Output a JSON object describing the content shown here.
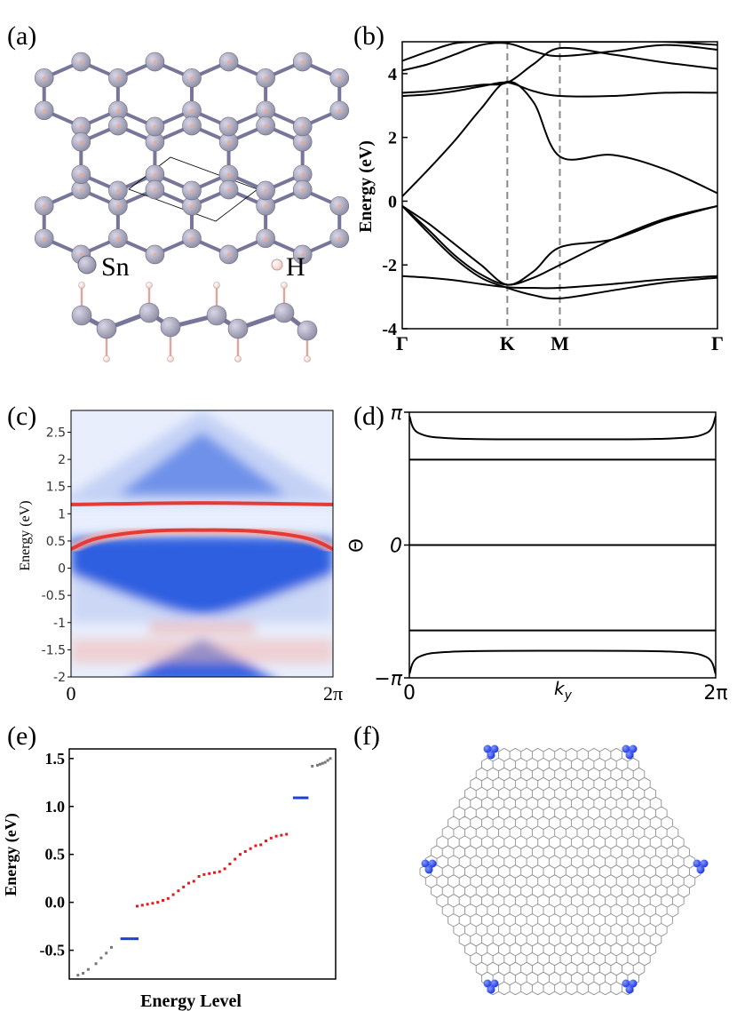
{
  "colors": {
    "atom_sn": "#8e8ca2",
    "atom_h": "#f0c8c0",
    "bond": "#77759a",
    "band_line": "#000000",
    "k_line": "#8a8a8a",
    "spectral_blue": "#2d5fe0",
    "spectral_red": "#e53a35",
    "level_blue": "#1b3fd6",
    "level_red": "#e41a1c",
    "level_gray": "#777777",
    "lattice": "#909090",
    "corner_state": "#1b2fe0"
  },
  "panels": {
    "a": {
      "label": "(a)",
      "legend": [
        {
          "symbol": "sn-atom",
          "text": "Sn"
        },
        {
          "symbol": "h-atom",
          "text": "H"
        }
      ]
    },
    "b": {
      "label": "(b)"
    },
    "c": {
      "label": "(c)"
    },
    "d": {
      "label": "(d)"
    },
    "e": {
      "label": "(e)"
    },
    "f": {
      "label": "(f)"
    }
  },
  "chart_data": [
    {
      "id": "b",
      "type": "line",
      "title": "",
      "ylabel": "Energy (eV)",
      "xlabel": "",
      "ylim": [
        -4,
        5
      ],
      "yticks": [
        -4,
        -2,
        0,
        2,
        4
      ],
      "kpoints": [
        "Γ",
        "K",
        "M",
        "Γ"
      ],
      "kpos": [
        0,
        1,
        1.5,
        3
      ],
      "bands": [
        {
          "x": [
            0,
            0.25,
            0.5,
            0.75,
            1,
            1.25,
            1.5,
            2,
            2.5,
            3
          ],
          "y": [
            -2.35,
            -2.4,
            -2.48,
            -2.6,
            -2.7,
            -2.72,
            -2.72,
            -2.6,
            -2.45,
            -2.35
          ]
        },
        {
          "x": [
            0,
            0.25,
            0.5,
            0.75,
            1,
            1.25,
            1.5,
            2,
            2.5,
            3
          ],
          "y": [
            -0.15,
            -0.9,
            -1.7,
            -2.3,
            -2.62,
            -2.4,
            -2.0,
            -1.2,
            -0.55,
            -0.15
          ]
        },
        {
          "x": [
            0,
            0.25,
            0.5,
            0.75,
            1,
            1.25,
            1.5,
            2,
            2.5,
            3
          ],
          "y": [
            -0.15,
            -1.0,
            -1.8,
            -2.4,
            -2.72,
            -2.95,
            -3.05,
            -2.8,
            -2.55,
            -2.4
          ]
        },
        {
          "x": [
            0,
            0.25,
            0.5,
            0.75,
            1,
            1.25,
            1.5,
            2,
            2.5,
            3
          ],
          "y": [
            -0.15,
            -0.7,
            -1.35,
            -2.0,
            -2.62,
            -2.2,
            -1.45,
            -1.2,
            -0.6,
            -0.15
          ]
        },
        {
          "x": [
            0,
            0.25,
            0.5,
            0.75,
            1,
            1.25,
            1.5,
            2,
            2.5,
            3
          ],
          "y": [
            0.15,
            1.0,
            1.9,
            2.9,
            3.75,
            3.1,
            1.4,
            1.45,
            1.0,
            0.25
          ]
        },
        {
          "x": [
            0,
            0.25,
            0.5,
            0.75,
            1,
            1.25,
            1.5,
            2,
            2.5,
            3
          ],
          "y": [
            3.3,
            3.35,
            3.45,
            3.6,
            3.72,
            3.45,
            3.3,
            3.3,
            3.4,
            3.4
          ]
        },
        {
          "x": [
            0,
            0.25,
            0.5,
            0.75,
            1,
            1.25,
            1.5,
            2,
            2.5,
            3
          ],
          "y": [
            3.4,
            3.45,
            3.55,
            3.65,
            3.72,
            4.3,
            4.8,
            4.6,
            4.35,
            4.15
          ]
        },
        {
          "x": [
            0,
            0.25,
            0.5,
            0.75,
            1,
            1.25,
            1.5,
            2,
            2.5,
            3
          ],
          "y": [
            4.1,
            4.3,
            4.6,
            4.9,
            4.95,
            4.7,
            4.55,
            4.7,
            4.9,
            4.75
          ]
        },
        {
          "x": [
            0,
            0.25,
            0.5,
            0.75,
            1,
            1.25,
            1.5,
            2,
            2.5,
            3
          ],
          "y": [
            4.4,
            4.7,
            4.95,
            5.0,
            5.0,
            5.0,
            5.0,
            5.0,
            5.0,
            4.9
          ]
        }
      ]
    },
    {
      "id": "c",
      "type": "heatmap",
      "title": "",
      "ylabel": "Energy (eV)",
      "xlabel": "",
      "ylim": [
        -2,
        2.9
      ],
      "yticks": [
        -2,
        -1.5,
        -1,
        -0.5,
        0,
        0.5,
        1,
        1.5,
        2,
        2.5
      ],
      "ytick_labels": [
        "-2",
        "-1.5",
        "-1",
        "-0.5",
        "0",
        "0.5",
        "1",
        "1.5",
        "2",
        "2.5"
      ],
      "xtick_labels": [
        "0",
        "2π"
      ],
      "edge_states": [
        {
          "name": "upper",
          "x": [
            0,
            0.5,
            1
          ],
          "y": [
            1.17,
            1.2,
            1.17
          ]
        },
        {
          "name": "lower",
          "x": [
            0,
            0.1,
            0.3,
            0.5,
            0.7,
            0.9,
            1
          ],
          "y": [
            0.35,
            0.55,
            0.68,
            0.7,
            0.68,
            0.55,
            0.35
          ]
        }
      ],
      "bulk_regions": [
        {
          "name": "conduction",
          "apex": 2.5,
          "base": 1.35
        },
        {
          "name": "valence",
          "top": 0.55,
          "bottom": -0.85
        },
        {
          "name": "lower",
          "top": -1.3,
          "bottom": -2
        }
      ]
    },
    {
      "id": "d",
      "type": "line",
      "title": "",
      "ylabel": "Θ",
      "xlabel": "k_y",
      "ylim": [
        -3.1416,
        3.1416
      ],
      "yticks": [
        -3.1416,
        0,
        3.1416
      ],
      "ytick_labels": [
        "−π",
        "0",
        "π"
      ],
      "xtick_labels": [
        "0",
        "2π"
      ],
      "series": [
        {
          "name": "theta-upper",
          "x": [
            0,
            0.03,
            0.15,
            0.5,
            0.85,
            0.97,
            1
          ],
          "y": [
            3.05,
            2.65,
            2.52,
            2.5,
            2.52,
            2.65,
            3.05
          ]
        },
        {
          "name": "theta-mid-upper",
          "x": [
            0,
            1
          ],
          "y": [
            2.02,
            2.02
          ]
        },
        {
          "name": "theta-zero",
          "x": [
            0,
            1
          ],
          "y": [
            0,
            0
          ]
        },
        {
          "name": "theta-mid-lower",
          "x": [
            0,
            1
          ],
          "y": [
            -2.02,
            -2.02
          ]
        },
        {
          "name": "theta-lower",
          "x": [
            0,
            0.03,
            0.15,
            0.5,
            0.85,
            0.97,
            1
          ],
          "y": [
            -3.05,
            -2.65,
            -2.52,
            -2.5,
            -2.52,
            -2.65,
            -3.05
          ]
        }
      ]
    },
    {
      "id": "e",
      "type": "scatter",
      "title": "",
      "ylabel": "Energy (eV)",
      "xlabel": "Energy Level",
      "ylim": [
        -0.8,
        1.6
      ],
      "yticks": [
        -0.5,
        0.0,
        0.5,
        1.0,
        1.5
      ],
      "ytick_labels": [
        "-0.5",
        "0.0",
        "0.5",
        "1.0",
        "1.5"
      ],
      "series": [
        {
          "name": "low-bulk",
          "color": "gray",
          "points": [
            [
              0.02,
              -0.76
            ],
            [
              0.04,
              -0.74
            ],
            [
              0.06,
              -0.7
            ],
            [
              0.09,
              -0.64
            ],
            [
              0.11,
              -0.58
            ],
            [
              0.13,
              -0.53
            ],
            [
              0.15,
              -0.47
            ]
          ]
        },
        {
          "name": "low-corner",
          "color": "blue",
          "points": [
            [
              0.19,
              -0.38
            ],
            [
              0.2,
              -0.38
            ],
            [
              0.21,
              -0.38
            ],
            [
              0.22,
              -0.38
            ],
            [
              0.23,
              -0.38
            ],
            [
              0.24,
              -0.38
            ],
            [
              0.25,
              -0.38
            ]
          ]
        },
        {
          "name": "edge",
          "color": "red",
          "points": [
            [
              0.25,
              -0.04
            ],
            [
              0.27,
              -0.03
            ],
            [
              0.29,
              -0.02
            ],
            [
              0.31,
              -0.01
            ],
            [
              0.33,
              0.0
            ],
            [
              0.35,
              0.02
            ],
            [
              0.37,
              0.04
            ],
            [
              0.39,
              0.08
            ],
            [
              0.41,
              0.12
            ],
            [
              0.43,
              0.16
            ],
            [
              0.45,
              0.2
            ],
            [
              0.47,
              0.22
            ],
            [
              0.49,
              0.27
            ],
            [
              0.51,
              0.29
            ],
            [
              0.53,
              0.3
            ],
            [
              0.55,
              0.31
            ],
            [
              0.57,
              0.32
            ],
            [
              0.59,
              0.35
            ],
            [
              0.61,
              0.4
            ],
            [
              0.63,
              0.45
            ],
            [
              0.65,
              0.5
            ],
            [
              0.67,
              0.53
            ],
            [
              0.69,
              0.56
            ],
            [
              0.71,
              0.59
            ],
            [
              0.73,
              0.6
            ],
            [
              0.75,
              0.64
            ],
            [
              0.77,
              0.67
            ],
            [
              0.79,
              0.69
            ],
            [
              0.81,
              0.7
            ],
            [
              0.83,
              0.71
            ]
          ]
        },
        {
          "name": "high-corner",
          "color": "blue",
          "points": [
            [
              0.86,
              1.09
            ],
            [
              0.87,
              1.09
            ],
            [
              0.88,
              1.09
            ],
            [
              0.89,
              1.09
            ],
            [
              0.9,
              1.09
            ],
            [
              0.91,
              1.09
            ]
          ]
        },
        {
          "name": "high-bulk",
          "color": "gray",
          "points": [
            [
              0.93,
              1.42
            ],
            [
              0.95,
              1.43
            ],
            [
              0.96,
              1.44
            ],
            [
              0.97,
              1.45
            ],
            [
              0.98,
              1.46
            ],
            [
              0.99,
              1.48
            ],
            [
              1.0,
              1.5
            ]
          ]
        }
      ]
    }
  ]
}
